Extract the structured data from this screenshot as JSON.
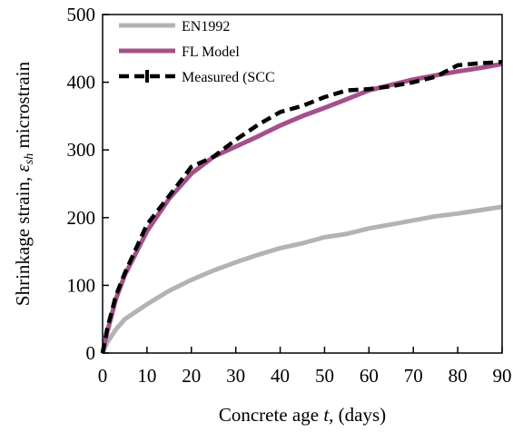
{
  "chart_data": {
    "type": "line",
    "xlabel_pre": "Concrete age ",
    "xlabel_var": "t",
    "xlabel_post": ", (days)",
    "ylabel_pre": "Shrinkage strain, ",
    "ylabel_var": "ε",
    "ylabel_sub": "sh",
    "ylabel_post": " microstrain",
    "xlim": [
      0,
      90
    ],
    "ylim": [
      0,
      500
    ],
    "xticks": [
      "0",
      "10",
      "20",
      "30",
      "40",
      "50",
      "60",
      "70",
      "80",
      "90"
    ],
    "yticks": [
      "0",
      "100",
      "200",
      "300",
      "400",
      "500"
    ],
    "grid": false,
    "legend_position": "top-left",
    "series": [
      {
        "name": "EN1992",
        "color": "#b3b3b3",
        "style": "solid",
        "x": [
          0,
          1,
          3,
          5,
          10,
          15,
          20,
          25,
          30,
          35,
          40,
          45,
          50,
          55,
          60,
          65,
          70,
          75,
          80,
          85,
          90
        ],
        "y": [
          0,
          15,
          35,
          50,
          72,
          92,
          108,
          122,
          134,
          145,
          155,
          162,
          171,
          176,
          184,
          190,
          196,
          202,
          206,
          211,
          216
        ]
      },
      {
        "name": "FL Model",
        "color": "#a4508b",
        "style": "solid",
        "x": [
          0,
          1,
          3,
          5,
          10,
          15,
          20,
          25,
          30,
          35,
          40,
          45,
          50,
          55,
          60,
          65,
          70,
          75,
          80,
          85,
          90
        ],
        "y": [
          0,
          30,
          80,
          115,
          180,
          228,
          265,
          290,
          305,
          320,
          336,
          350,
          362,
          375,
          388,
          396,
          404,
          410,
          416,
          421,
          427
        ]
      },
      {
        "name": "Measured (SCC",
        "color": "#000000",
        "style": "dashed",
        "x": [
          0,
          1,
          3,
          5,
          10,
          15,
          20,
          25,
          30,
          35,
          40,
          45,
          50,
          55,
          60,
          65,
          70,
          75,
          80,
          85,
          90
        ],
        "y": [
          0,
          35,
          85,
          118,
          190,
          232,
          275,
          290,
          315,
          337,
          356,
          365,
          378,
          388,
          390,
          394,
          400,
          408,
          425,
          428,
          430
        ]
      }
    ]
  }
}
